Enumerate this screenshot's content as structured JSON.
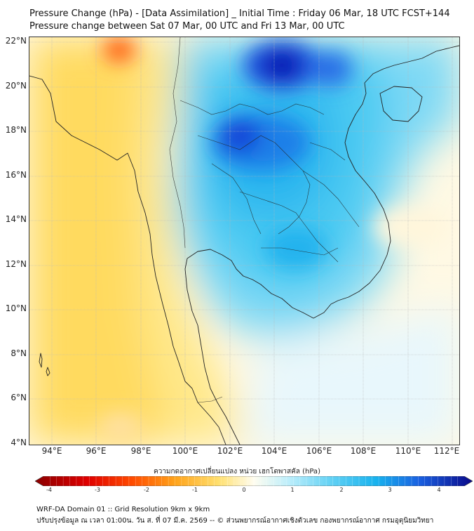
{
  "header": {
    "title_line1": "Pressure Change (hPa) - [Data Assimilation] _ Initial Time : Friday 06 Mar, 18 UTC FCST+144",
    "title_line2": "Pressure change between Sat 07 Mar, 00 UTC and Fri 13 Mar, 00 UTC"
  },
  "map": {
    "lat_labels": [
      "22°N",
      "20°N",
      "18°N",
      "16°N",
      "14°N",
      "12°N",
      "10°N",
      "8°N",
      "6°N",
      "4°N"
    ],
    "lon_labels": [
      "94°E",
      "96°E",
      "98°E",
      "100°E",
      "102°E",
      "104°E",
      "106°E",
      "108°E",
      "110°E",
      "112°E"
    ],
    "lat_range": [
      4,
      22.2
    ],
    "lon_range": [
      93,
      112.3
    ]
  },
  "colorbar": {
    "title": "ความกดอากาศเปลี่ยนแปลง หน่วย เฮกโตพาสคัล (hPa)",
    "range": [
      -4,
      4
    ],
    "tick_labels": [
      "-4",
      "-3",
      "-2",
      "-1",
      "0",
      "1",
      "2",
      "3",
      "4"
    ],
    "colors": {
      "negative_strong": "#8b0000",
      "negative": "#ff2a00",
      "neg_mid": "#ffd24a",
      "neutral": "#fffdf0",
      "positive": "#7fd9f5",
      "pos_mid": "#1ec0f0",
      "positive_strong": "#0a14b4"
    }
  },
  "footer": {
    "line1": "WRF-DA Domain 01 :: Grid Resolution 9km x 9km",
    "line2": "ปรับปรุงข้อมูล ณ เวลา 01:00น. วัน ส. ที่ 07 มี.ค. 2569 -- © ส่วนพยากรณ์อากาศเชิงตัวเลข กองพยากรณ์อากาศ กรมอุตุนิยมวิทยา"
  }
}
